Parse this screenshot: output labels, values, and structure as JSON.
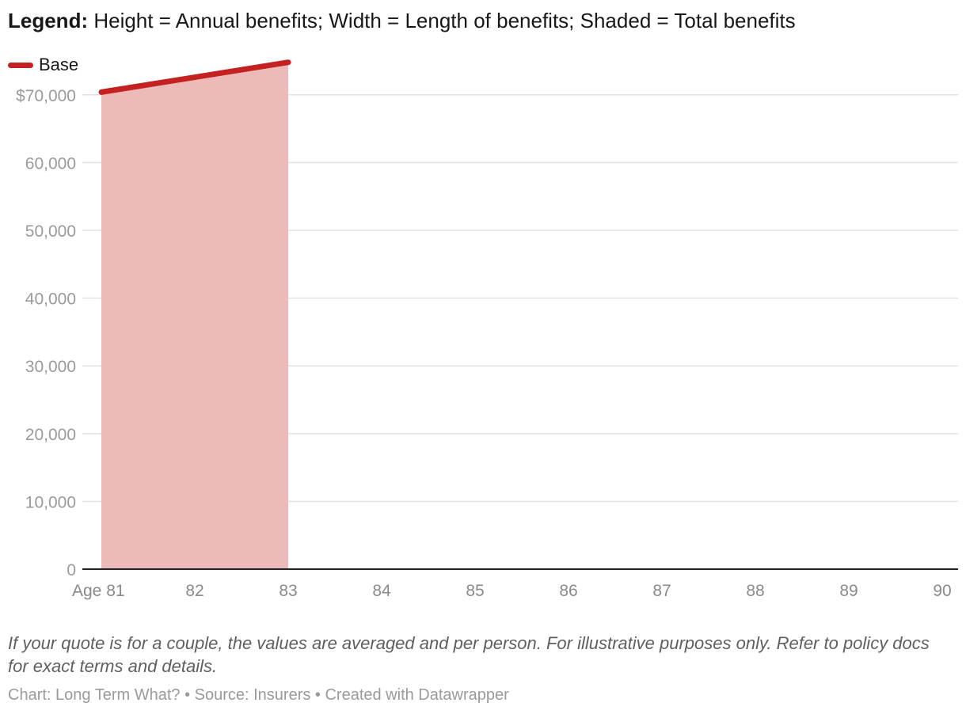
{
  "legend": {
    "label": "Legend:",
    "text": " Height = Annual benefits; Width = Length of benefits; Shaded = Total benefits"
  },
  "series_key": {
    "label": "Base",
    "color": "#c42121"
  },
  "chart_data": {
    "type": "area",
    "title": "Legend: Height = Annual benefits; Width = Length of benefits; Shaded = Total benefits",
    "xlabel": "",
    "ylabel": "",
    "x_ticks": [
      "Age 81",
      "82",
      "83",
      "84",
      "85",
      "86",
      "87",
      "88",
      "89",
      "90"
    ],
    "x_range": [
      81,
      90
    ],
    "y_ticks": [
      "0",
      "10,000",
      "20,000",
      "30,000",
      "40,000",
      "50,000",
      "60,000",
      "$70,000"
    ],
    "y_tick_values": [
      0,
      10000,
      20000,
      30000,
      40000,
      50000,
      60000,
      70000
    ],
    "ylim": [
      0,
      75000
    ],
    "grid": true,
    "legend_position": "top-left",
    "series": [
      {
        "name": "Base",
        "color": "#c42121",
        "fill_color": "#edbaba",
        "x": [
          81,
          83
        ],
        "values": [
          70400,
          74800
        ]
      }
    ]
  },
  "notes": "If your quote is for a couple, the values are averaged and per person. For illustrative purposes only. Refer to policy docs for exact terms and details.",
  "credits": "Chart: Long Term What? • Source: Insurers • Created with Datawrapper"
}
